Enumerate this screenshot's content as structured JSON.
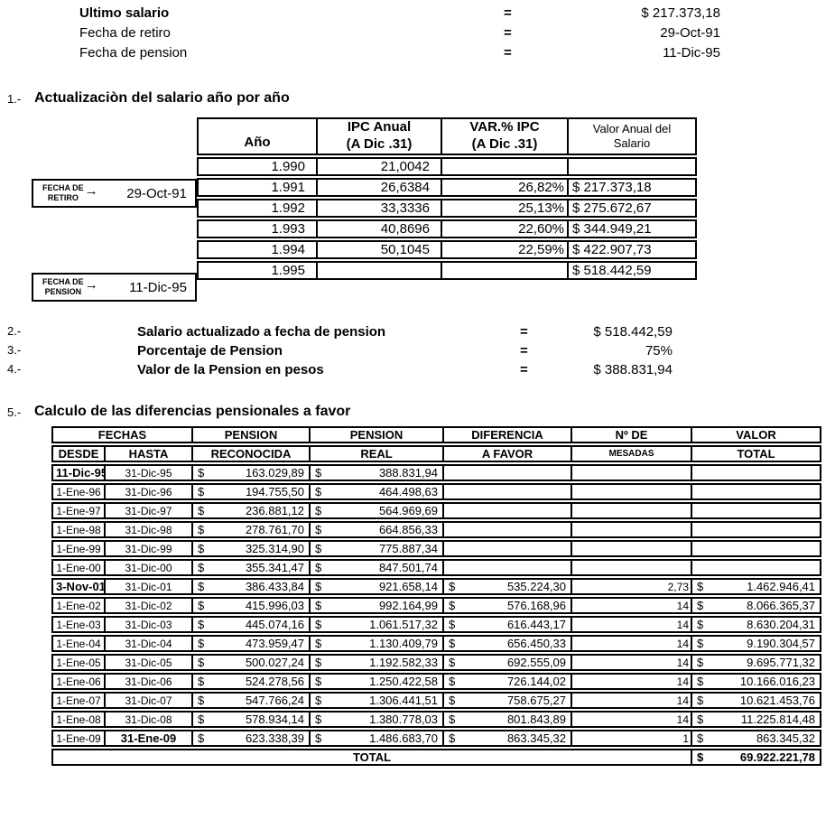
{
  "summary": {
    "rows": [
      {
        "label": "Ultimo salario",
        "eq": "=",
        "value": "$ 217.373,18",
        "bold_label": true
      },
      {
        "label": "Fecha de retiro",
        "eq": "=",
        "value": "29-Oct-91",
        "bold_label": false
      },
      {
        "label": "Fecha de pension",
        "eq": "=",
        "value": "11-Dic-95",
        "bold_label": false
      }
    ]
  },
  "section1": {
    "number": "1.-",
    "title": "Actualizaciòn del salario año por año",
    "markers": [
      {
        "label_line1": "FECHA DE",
        "label_line2": "RETIRO",
        "arrow": "→",
        "date": "29-Oct-91"
      },
      {
        "label_line1": "FECHA DE",
        "label_line2": "PENSION",
        "arrow": "→",
        "date": "11-Dic-95"
      }
    ],
    "table": {
      "headers": [
        [
          "Año",
          ""
        ],
        [
          "IPC Anual",
          "(A Dic .31)"
        ],
        [
          "VAR.% IPC",
          "(A Dic .31)"
        ],
        [
          "Valor Anual del",
          "Salario"
        ]
      ],
      "rows": [
        {
          "ano": "1.990",
          "ipc": "21,0042",
          "var": "",
          "valor": ""
        },
        {
          "ano": "1.991",
          "ipc": "26,6384",
          "var": "26,82%",
          "valor": "$ 217.373,18"
        },
        {
          "ano": "1.992",
          "ipc": "33,3336",
          "var": "25,13%",
          "valor": "$ 275.672,67"
        },
        {
          "ano": "1.993",
          "ipc": "40,8696",
          "var": "22,60%",
          "valor": "$ 344.949,21"
        },
        {
          "ano": "1.994",
          "ipc": "50,1045",
          "var": "22,59%",
          "valor": "$ 422.907,73"
        },
        {
          "ano": "1.995",
          "ipc": "",
          "var": "",
          "valor": "$ 518.442,59"
        }
      ]
    }
  },
  "items": [
    {
      "number": "2.-",
      "label": "Salario actualizado a fecha de pension",
      "eq": "=",
      "value": "$ 518.442,59"
    },
    {
      "number": "3.-",
      "label": "Porcentaje de Pension",
      "eq": "=",
      "value": "75%"
    },
    {
      "number": "4.-",
      "label": "Valor  de la Pension en pesos",
      "eq": "=",
      "value": "$ 388.831,94"
    }
  ],
  "section5": {
    "number": "5.-",
    "title": "Calculo de las diferencias pensionales a favor",
    "table": {
      "currency": "$",
      "header_row1": [
        "FECHAS",
        "PENSION",
        "PENSION",
        "DIFERENCIA",
        "Nº DE",
        "VALOR"
      ],
      "header_row2": [
        "DESDE",
        "HASTA",
        "RECONOCIDA",
        "REAL",
        "A FAVOR",
        "MESADAS",
        "TOTAL"
      ],
      "rows": [
        {
          "desde": "11-Dic-95",
          "desde_bold": true,
          "hasta": "31-Dic-95",
          "hasta_bold": false,
          "reconocida": "163.029,89",
          "real": "388.831,94",
          "diferencia": "",
          "mesadas": "",
          "total": ""
        },
        {
          "desde": "1-Ene-96",
          "desde_bold": false,
          "hasta": "31-Dic-96",
          "hasta_bold": false,
          "reconocida": "194.755,50",
          "real": "464.498,63",
          "diferencia": "",
          "mesadas": "",
          "total": ""
        },
        {
          "desde": "1-Ene-97",
          "desde_bold": false,
          "hasta": "31-Dic-97",
          "hasta_bold": false,
          "reconocida": "236.881,12",
          "real": "564.969,69",
          "diferencia": "",
          "mesadas": "",
          "total": ""
        },
        {
          "desde": "1-Ene-98",
          "desde_bold": false,
          "hasta": "31-Dic-98",
          "hasta_bold": false,
          "reconocida": "278.761,70",
          "real": "664.856,33",
          "diferencia": "",
          "mesadas": "",
          "total": ""
        },
        {
          "desde": "1-Ene-99",
          "desde_bold": false,
          "hasta": "31-Dic-99",
          "hasta_bold": false,
          "reconocida": "325.314,90",
          "real": "775.887,34",
          "diferencia": "",
          "mesadas": "",
          "total": ""
        },
        {
          "desde": "1-Ene-00",
          "desde_bold": false,
          "hasta": "31-Dic-00",
          "hasta_bold": false,
          "reconocida": "355.341,47",
          "real": "847.501,74",
          "diferencia": "",
          "mesadas": "",
          "total": ""
        },
        {
          "desde": "3-Nov-01",
          "desde_bold": true,
          "hasta": "31-Dic-01",
          "hasta_bold": false,
          "reconocida": "386.433,84",
          "real": "921.658,14",
          "diferencia": "535.224,30",
          "mesadas": "2,73",
          "total": "1.462.946,41"
        },
        {
          "desde": "1-Ene-02",
          "desde_bold": false,
          "hasta": "31-Dic-02",
          "hasta_bold": false,
          "reconocida": "415.996,03",
          "real": "992.164,99",
          "diferencia": "576.168,96",
          "mesadas": "14",
          "total": "8.066.365,37"
        },
        {
          "desde": "1-Ene-03",
          "desde_bold": false,
          "hasta": "31-Dic-03",
          "hasta_bold": false,
          "reconocida": "445.074,16",
          "real": "1.061.517,32",
          "diferencia": "616.443,17",
          "mesadas": "14",
          "total": "8.630.204,31"
        },
        {
          "desde": "1-Ene-04",
          "desde_bold": false,
          "hasta": "31-Dic-04",
          "hasta_bold": false,
          "reconocida": "473.959,47",
          "real": "1.130.409,79",
          "diferencia": "656.450,33",
          "mesadas": "14",
          "total": "9.190.304,57"
        },
        {
          "desde": "1-Ene-05",
          "desde_bold": false,
          "hasta": "31-Dic-05",
          "hasta_bold": false,
          "reconocida": "500.027,24",
          "real": "1.192.582,33",
          "diferencia": "692.555,09",
          "mesadas": "14",
          "total": "9.695.771,32"
        },
        {
          "desde": "1-Ene-06",
          "desde_bold": false,
          "hasta": "31-Dic-06",
          "hasta_bold": false,
          "reconocida": "524.278,56",
          "real": "1.250.422,58",
          "diferencia": "726.144,02",
          "mesadas": "14",
          "total": "10.166.016,23"
        },
        {
          "desde": "1-Ene-07",
          "desde_bold": false,
          "hasta": "31-Dic-07",
          "hasta_bold": false,
          "reconocida": "547.766,24",
          "real": "1.306.441,51",
          "diferencia": "758.675,27",
          "mesadas": "14",
          "total": "10.621.453,76"
        },
        {
          "desde": "1-Ene-08",
          "desde_bold": false,
          "hasta": "31-Dic-08",
          "hasta_bold": false,
          "reconocida": "578.934,14",
          "real": "1.380.778,03",
          "diferencia": "801.843,89",
          "mesadas": "14",
          "total": "11.225.814,48"
        },
        {
          "desde": "1-Ene-09",
          "desde_bold": false,
          "hasta": "31-Ene-09",
          "hasta_bold": true,
          "reconocida": "623.338,39",
          "real": "1.486.683,70",
          "diferencia": "863.345,32",
          "mesadas": "1",
          "total": "863.345,32"
        }
      ],
      "total_label": "TOTAL",
      "total_value": "69.922.221,78"
    }
  }
}
